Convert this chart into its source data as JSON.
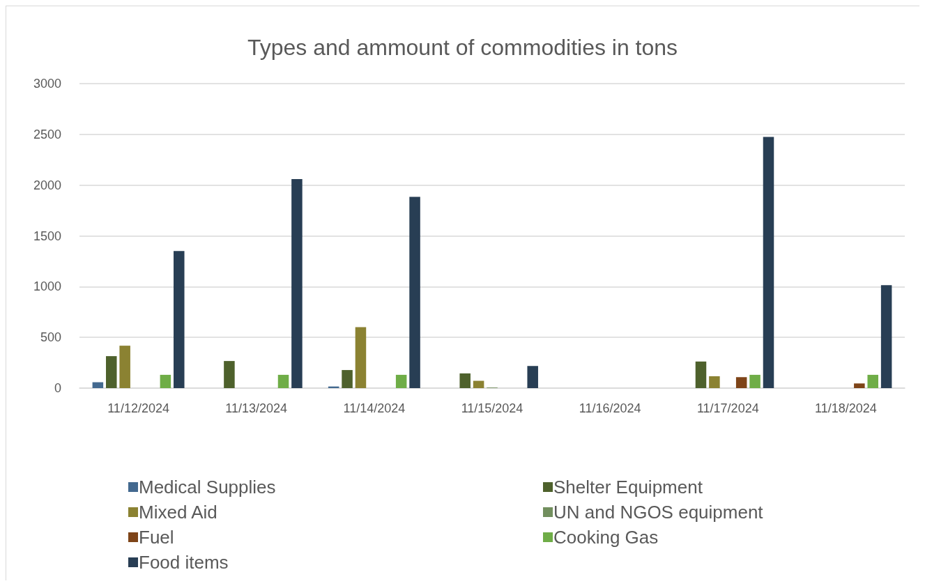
{
  "chart_data": {
    "type": "bar",
    "title": "Types and ammount of commodities in tons",
    "categories": [
      "11/12/2024",
      "11/13/2024",
      "11/14/2024",
      "11/15/2024",
      "11/16/2024",
      "11/17/2024",
      "11/18/2024"
    ],
    "series": [
      {
        "name": "Medical Supplies",
        "color": "#43698f",
        "values": [
          58,
          null,
          16,
          null,
          null,
          null,
          null
        ]
      },
      {
        "name": "Shelter Equipment",
        "color": "#4e612c",
        "values": [
          315,
          267,
          178,
          145,
          null,
          262,
          null
        ]
      },
      {
        "name": "Mixed Aid",
        "color": "#8b8232",
        "values": [
          418,
          null,
          600,
          72,
          null,
          117,
          null
        ]
      },
      {
        "name": "UN and NGOS equipment",
        "color": "#728f5e",
        "values": [
          null,
          null,
          null,
          6,
          null,
          null,
          null
        ]
      },
      {
        "name": "Fuel",
        "color": "#7e4418",
        "values": [
          null,
          null,
          null,
          null,
          null,
          108,
          46
        ]
      },
      {
        "name": "Cooking Gas",
        "color": "#6fad47",
        "values": [
          131,
          131,
          131,
          null,
          null,
          131,
          131
        ]
      },
      {
        "name": "Food items",
        "color": "#283e54",
        "values": [
          1350,
          2060,
          1885,
          218,
          null,
          2475,
          1015
        ]
      }
    ],
    "ylim": [
      0,
      3000
    ],
    "yticks": [
      0,
      500,
      1000,
      1500,
      2000,
      2500,
      3000
    ],
    "grid": "y",
    "legend": "bottom"
  }
}
